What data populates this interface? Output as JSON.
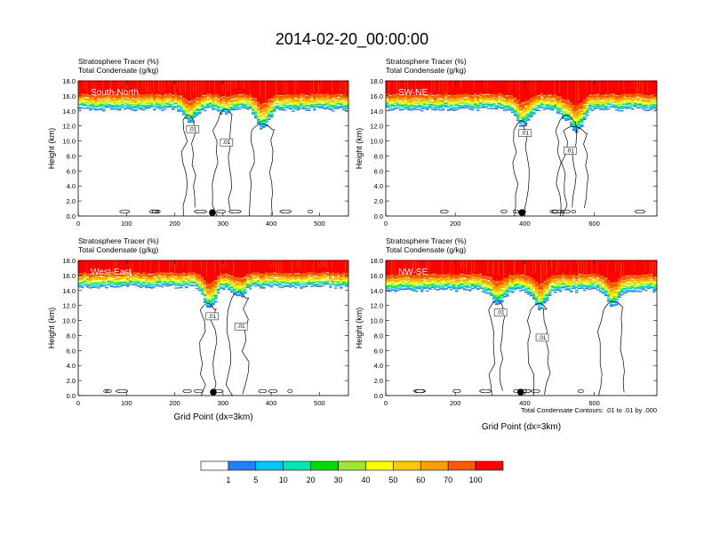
{
  "page": {
    "title": "2014-02-20_00:00:00",
    "contour_note": "Total Condensate Contours: .01 to .01 by .000",
    "shared_ylabel": "Height (km)",
    "shared_xlabel": "Grid Point (dx=3km)"
  },
  "colorbar": {
    "colors": [
      "#ffffff",
      "#1f7fff",
      "#00c8ff",
      "#00e6b4",
      "#00dc00",
      "#a0e632",
      "#ffff00",
      "#ffc800",
      "#ffa000",
      "#ff5a00",
      "#ff0000"
    ],
    "labels": [
      "1",
      "5",
      "10",
      "20",
      "30",
      "40",
      "50",
      "60",
      "70",
      "100"
    ]
  },
  "chart_data": [
    {
      "type": "heatmap",
      "name": "South-North",
      "fill_variable": "Stratosphere Tracer   (%)",
      "contour_variable": "Total Condensate   (g/kg)",
      "contour_level": ".01",
      "ylabel": "Height (km)",
      "xlabel": "",
      "xlim": [
        0,
        560
      ],
      "ylim": [
        0,
        18
      ],
      "xticks": [
        "0",
        "100",
        "200",
        "300",
        "400",
        "500"
      ],
      "yticks": [
        "0.0",
        "2.0",
        "4.0",
        "6.0",
        "8.0",
        "10.0",
        "12.0",
        "14.0",
        "16.0",
        "18.0"
      ],
      "tracer_top_km": 18,
      "tracer_bottom_km": 14.2,
      "marker_x": 278,
      "tropopause_dips": [
        [
          230,
          12.5
        ],
        [
          300,
          13.6
        ],
        [
          380,
          11.5
        ]
      ]
    },
    {
      "type": "heatmap",
      "name": "SW-NE",
      "fill_variable": "Stratosphere Tracer   (%)",
      "contour_variable": "Total Condensate   (g/kg)",
      "contour_level": ".01",
      "ylabel": "Height (km)",
      "xlabel": "",
      "xlim": [
        0,
        780
      ],
      "ylim": [
        0,
        18
      ],
      "xticks": [
        "0",
        "200",
        "400",
        "600"
      ],
      "yticks": [
        "0.0",
        "2.0",
        "4.0",
        "6.0",
        "8.0",
        "10.0",
        "12.0",
        "14.0",
        "16.0",
        "18.0"
      ],
      "tracer_top_km": 18,
      "tracer_bottom_km": 14.2,
      "marker_x": 392,
      "tropopause_dips": [
        [
          390,
          12.0
        ],
        [
          520,
          12.5
        ],
        [
          545,
          11.0
        ]
      ]
    },
    {
      "type": "heatmap",
      "name": "West-East",
      "fill_variable": "Stratosphere Tracer   (%)",
      "contour_variable": "Total Condensate   (g/kg)",
      "contour_level": ".01",
      "ylabel": "Height (km)",
      "xlabel": "Grid Point (dx=3km)",
      "xlim": [
        0,
        560
      ],
      "ylim": [
        0,
        18
      ],
      "xticks": [
        "0",
        "100",
        "200",
        "300",
        "400",
        "500"
      ],
      "yticks": [
        "0.0",
        "2.0",
        "4.0",
        "6.0",
        "8.0",
        "10.0",
        "12.0",
        "14.0",
        "16.0",
        "18.0"
      ],
      "tracer_top_km": 18,
      "tracer_bottom_km": 14.5,
      "marker_x": 280,
      "tropopause_dips": [
        [
          270,
          11.5
        ],
        [
          330,
          13.0
        ]
      ]
    },
    {
      "type": "heatmap",
      "name": "NW-SE",
      "fill_variable": "Stratosphere Tracer   (%)",
      "contour_variable": "Total Condensate   (g/kg)",
      "contour_level": ".01",
      "ylabel": "Height (km)",
      "xlabel": "Grid Point (dx=3km)",
      "xlim": [
        0,
        780
      ],
      "ylim": [
        0,
        18
      ],
      "xticks": [
        "0",
        "200",
        "400",
        "600"
      ],
      "yticks": [
        "0.0",
        "2.0",
        "4.0",
        "6.0",
        "8.0",
        "10.0",
        "12.0",
        "14.0",
        "16.0",
        "18.0"
      ],
      "tracer_top_km": 18,
      "tracer_bottom_km": 14.0,
      "marker_x": 388,
      "tropopause_dips": [
        [
          320,
          12.0
        ],
        [
          440,
          11.5
        ],
        [
          650,
          11.8
        ]
      ]
    }
  ]
}
